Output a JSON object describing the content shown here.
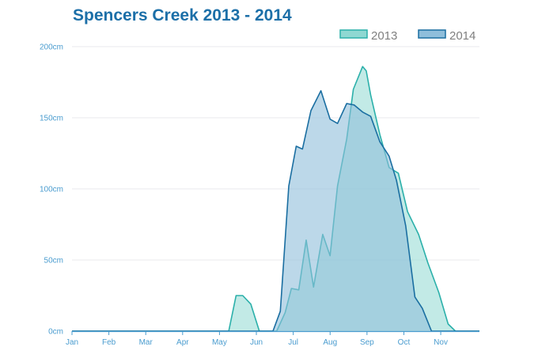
{
  "chart_data": {
    "type": "area",
    "title": "Spencers Creek 2013 - 2014",
    "xlabel": "",
    "ylabel": "",
    "x_ticks": [
      "Jan",
      "Feb",
      "Mar",
      "Apr",
      "May",
      "Jun",
      "Jul",
      "Aug",
      "Sep",
      "Oct",
      "Nov"
    ],
    "y_ticks": [
      "0cm",
      "50cm",
      "100cm",
      "150cm",
      "200cm"
    ],
    "ylim": [
      0,
      200
    ],
    "xlim": [
      1,
      12.05
    ],
    "grid": true,
    "legend": "top-right",
    "colors": {
      "title": "#1c6fa8",
      "s2013_line": "#2bb0aa",
      "s2013_fill": "#8fd8d2",
      "s2014_line": "#1a6ea1",
      "s2014_fill": "#8fbedb",
      "axis": "#4a9ccf",
      "grid": "#e8eaed"
    },
    "series": [
      {
        "name": "2013",
        "points": [
          [
            1,
            0
          ],
          [
            5.25,
            0
          ],
          [
            5.45,
            25
          ],
          [
            5.63,
            25
          ],
          [
            5.85,
            19
          ],
          [
            6.08,
            0
          ],
          [
            6.55,
            0
          ],
          [
            6.78,
            13
          ],
          [
            6.95,
            30
          ],
          [
            7.15,
            29
          ],
          [
            7.35,
            64
          ],
          [
            7.55,
            31
          ],
          [
            7.8,
            68
          ],
          [
            8.0,
            53
          ],
          [
            8.2,
            102
          ],
          [
            8.45,
            135
          ],
          [
            8.63,
            170
          ],
          [
            8.88,
            186
          ],
          [
            8.98,
            183
          ],
          [
            9.1,
            166
          ],
          [
            9.35,
            138
          ],
          [
            9.6,
            115
          ],
          [
            9.85,
            111
          ],
          [
            10.1,
            84
          ],
          [
            10.4,
            68
          ],
          [
            10.65,
            48
          ],
          [
            10.95,
            27
          ],
          [
            11.2,
            5
          ],
          [
            11.4,
            0
          ],
          [
            12.05,
            0
          ]
        ]
      },
      {
        "name": "2014",
        "points": [
          [
            1,
            0
          ],
          [
            6.45,
            0
          ],
          [
            6.65,
            14
          ],
          [
            6.88,
            102
          ],
          [
            7.08,
            130
          ],
          [
            7.25,
            128
          ],
          [
            7.48,
            155
          ],
          [
            7.75,
            169
          ],
          [
            8.0,
            149
          ],
          [
            8.2,
            146
          ],
          [
            8.45,
            160
          ],
          [
            8.65,
            159
          ],
          [
            8.88,
            154
          ],
          [
            9.1,
            151
          ],
          [
            9.35,
            133
          ],
          [
            9.6,
            123
          ],
          [
            9.8,
            106
          ],
          [
            10.05,
            74
          ],
          [
            10.3,
            24
          ],
          [
            10.5,
            16
          ],
          [
            10.75,
            0
          ],
          [
            12.05,
            0
          ]
        ]
      }
    ]
  }
}
